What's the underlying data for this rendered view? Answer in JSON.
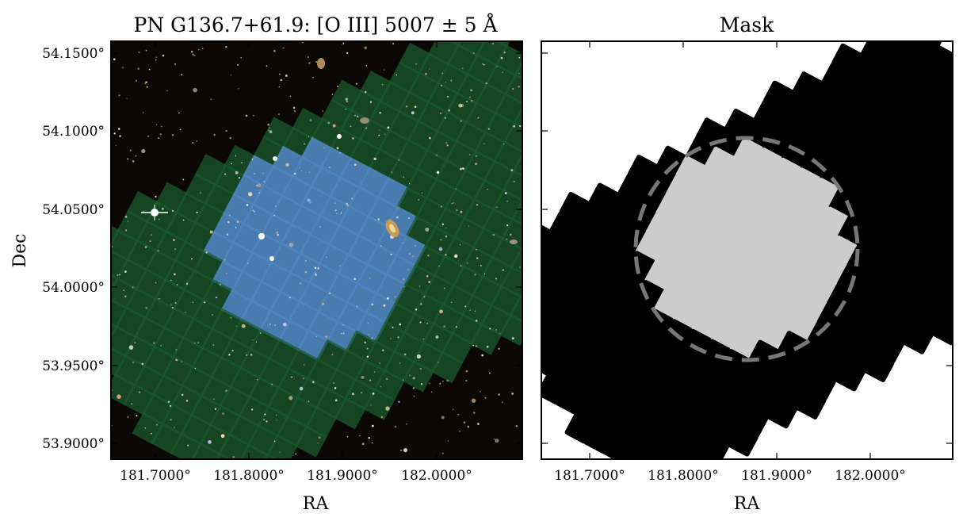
{
  "figure": {
    "left_panel": {
      "title": "PN G136.7+61.9: [O III] 5007 ± 5 Å",
      "xlabel": "RA",
      "ylabel": "Dec",
      "xticks": [
        "181.7000°",
        "181.8000°",
        "181.9000°",
        "182.0000°"
      ],
      "yticks": [
        "54.1500°",
        "54.1000°",
        "54.0500°",
        "54.0000°",
        "53.9500°",
        "53.9000°"
      ]
    },
    "right_panel": {
      "title": "Mask",
      "xlabel": "RA",
      "xticks": [
        "181.7000°",
        "181.8000°",
        "181.9000°",
        "182.0000°"
      ]
    },
    "colors": {
      "sky_background": "#0b0805",
      "observed_tile": "#4f86bd",
      "unobserved_tile": "#1a5a2c",
      "mask_tile": "#000000",
      "masked_tile_light": "#cccccc",
      "circle_outline": "#777777"
    }
  }
}
